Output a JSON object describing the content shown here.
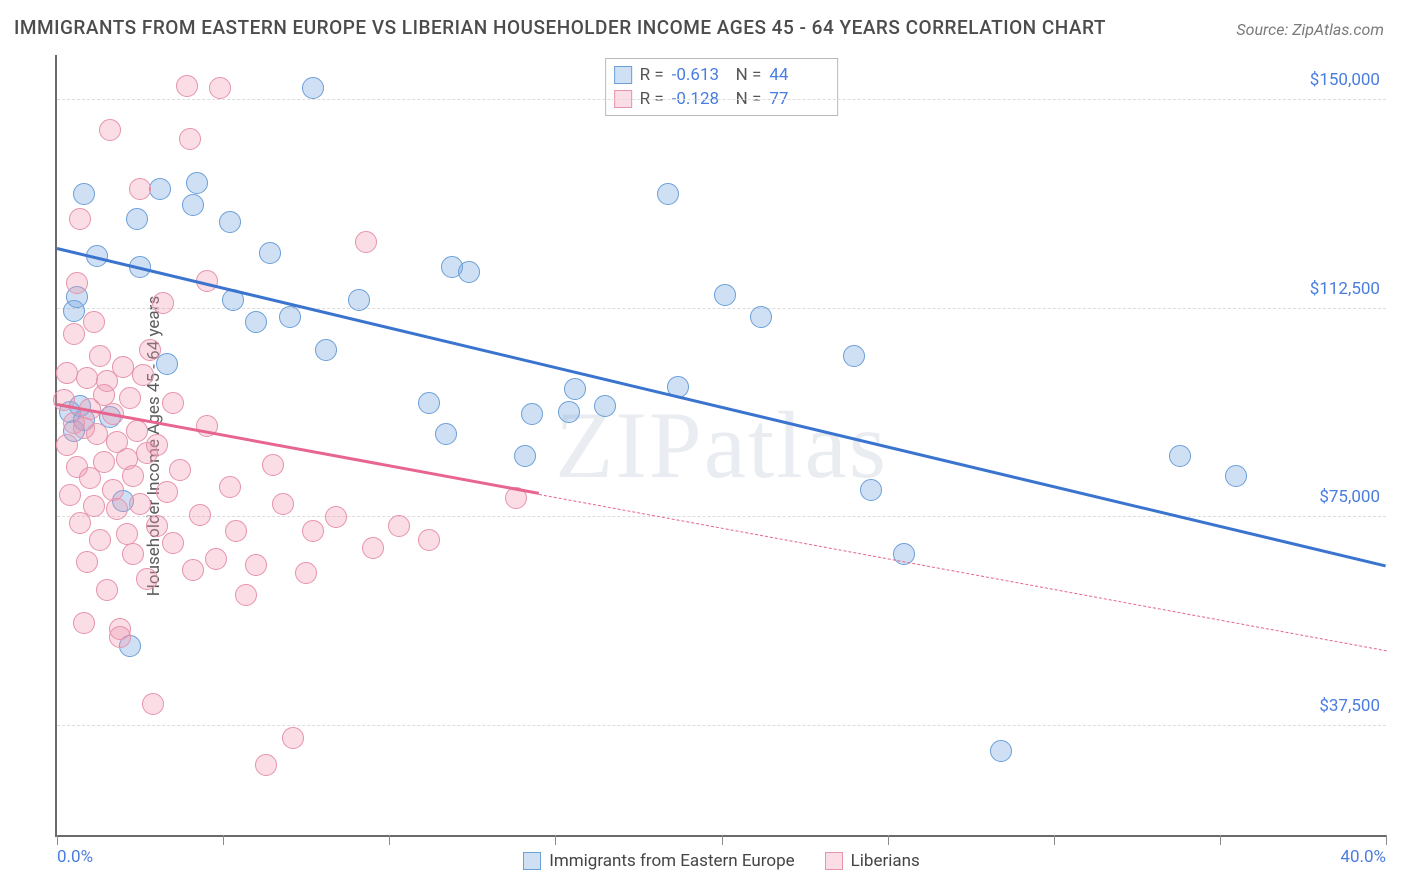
{
  "title": "IMMIGRANTS FROM EASTERN EUROPE VS LIBERIAN HOUSEHOLDER INCOME AGES 45 - 64 YEARS CORRELATION CHART",
  "source_label": "Source:",
  "source_value": "ZipAtlas.com",
  "watermark": "ZIPatlas",
  "chart": {
    "type": "scatter",
    "ylabel": "Householder Income Ages 45 - 64 years",
    "xlim": [
      0,
      40
    ],
    "ylim": [
      18000,
      158000
    ],
    "xmin_label": "0.0%",
    "xmax_label": "40.0%",
    "yticks": [
      {
        "v": 37500,
        "label": "$37,500"
      },
      {
        "v": 75000,
        "label": "$75,000"
      },
      {
        "v": 112500,
        "label": "$112,500"
      },
      {
        "v": 150000,
        "label": "$150,000"
      }
    ],
    "xtick_positions": [
      0,
      5,
      10,
      15,
      20,
      25,
      30,
      35,
      40
    ],
    "background_color": "#ffffff",
    "grid_color": "#dcdcdc",
    "axis_color": "#6a6a6a",
    "tick_label_color": "#4a7de0",
    "point_radius": 11,
    "series": [
      {
        "key": "eastern_europe",
        "label": "Immigrants from Eastern Europe",
        "fill": "rgba(120,166,224,0.35)",
        "stroke": "#6a9fd8",
        "trend_color": "#3a74cf",
        "trend_width": 3,
        "R": "-0.613",
        "N": "44",
        "trend": {
          "x1": 0,
          "y1": 123000,
          "x2": 40,
          "y2": 66000,
          "dash_after_x": null
        },
        "points": [
          [
            0.4,
            94000
          ],
          [
            0.5,
            112000
          ],
          [
            0.5,
            90500
          ],
          [
            0.6,
            114500
          ],
          [
            0.7,
            95000
          ],
          [
            0.8,
            133000
          ],
          [
            0.8,
            92500
          ],
          [
            1.2,
            122000
          ],
          [
            1.6,
            93000
          ],
          [
            2.0,
            78000
          ],
          [
            2.2,
            52000
          ],
          [
            2.4,
            128500
          ],
          [
            2.5,
            120000
          ],
          [
            3.1,
            134000
          ],
          [
            3.3,
            102500
          ],
          [
            4.1,
            131000
          ],
          [
            4.2,
            135000
          ],
          [
            5.2,
            128000
          ],
          [
            5.3,
            114000
          ],
          [
            6.0,
            110000
          ],
          [
            6.4,
            122500
          ],
          [
            7.0,
            111000
          ],
          [
            7.7,
            152000
          ],
          [
            8.1,
            105000
          ],
          [
            9.1,
            114000
          ],
          [
            11.2,
            95500
          ],
          [
            11.7,
            90000
          ],
          [
            11.9,
            120000
          ],
          [
            12.4,
            119000
          ],
          [
            14.1,
            86000
          ],
          [
            14.3,
            93500
          ],
          [
            15.4,
            94000
          ],
          [
            15.6,
            98000
          ],
          [
            16.5,
            95000
          ],
          [
            18.4,
            133000
          ],
          [
            18.7,
            98500
          ],
          [
            20.1,
            115000
          ],
          [
            21.2,
            111000
          ],
          [
            24.0,
            104000
          ],
          [
            24.5,
            80000
          ],
          [
            25.5,
            68500
          ],
          [
            28.4,
            33000
          ],
          [
            33.8,
            86000
          ],
          [
            35.5,
            82500
          ]
        ]
      },
      {
        "key": "liberians",
        "label": "Liberians",
        "fill": "rgba(240,150,175,0.32)",
        "stroke": "#e693ac",
        "trend_color": "#e7658e",
        "trend_width": 3,
        "R": "-0.128",
        "N": "77",
        "trend": {
          "x1": 0,
          "y1": 95000,
          "x2": 40,
          "y2": 51000,
          "dash_after_x": 14.5
        },
        "points": [
          [
            0.2,
            96000
          ],
          [
            0.3,
            101000
          ],
          [
            0.3,
            88000
          ],
          [
            0.4,
            79000
          ],
          [
            0.5,
            108000
          ],
          [
            0.5,
            92000
          ],
          [
            0.6,
            84000
          ],
          [
            0.6,
            117000
          ],
          [
            0.7,
            74000
          ],
          [
            0.7,
            128500
          ],
          [
            0.8,
            56000
          ],
          [
            0.8,
            91000
          ],
          [
            0.9,
            100000
          ],
          [
            0.9,
            67000
          ],
          [
            1.0,
            94500
          ],
          [
            1.0,
            82000
          ],
          [
            1.1,
            110000
          ],
          [
            1.1,
            77000
          ],
          [
            1.2,
            90000
          ],
          [
            1.3,
            104000
          ],
          [
            1.3,
            71000
          ],
          [
            1.4,
            85000
          ],
          [
            1.4,
            97000
          ],
          [
            1.5,
            62000
          ],
          [
            1.5,
            99500
          ],
          [
            1.6,
            144500
          ],
          [
            1.7,
            80000
          ],
          [
            1.7,
            93500
          ],
          [
            1.8,
            88500
          ],
          [
            1.8,
            76500
          ],
          [
            1.9,
            55000
          ],
          [
            1.9,
            53500
          ],
          [
            2.0,
            102000
          ],
          [
            2.1,
            85500
          ],
          [
            2.1,
            72000
          ],
          [
            2.2,
            96500
          ],
          [
            2.3,
            68500
          ],
          [
            2.3,
            82500
          ],
          [
            2.4,
            90500
          ],
          [
            2.5,
            77500
          ],
          [
            2.5,
            134000
          ],
          [
            2.6,
            100500
          ],
          [
            2.7,
            86500
          ],
          [
            2.7,
            64000
          ],
          [
            2.8,
            105000
          ],
          [
            2.9,
            41500
          ],
          [
            3.0,
            73500
          ],
          [
            3.0,
            88000
          ],
          [
            3.2,
            113500
          ],
          [
            3.3,
            79500
          ],
          [
            3.5,
            70500
          ],
          [
            3.5,
            95500
          ],
          [
            3.7,
            83500
          ],
          [
            3.9,
            152500
          ],
          [
            4.0,
            143000
          ],
          [
            4.1,
            65500
          ],
          [
            4.3,
            75500
          ],
          [
            4.5,
            117500
          ],
          [
            4.5,
            91500
          ],
          [
            4.8,
            67500
          ],
          [
            4.9,
            152000
          ],
          [
            5.2,
            80500
          ],
          [
            5.4,
            72500
          ],
          [
            5.7,
            61000
          ],
          [
            6.0,
            66500
          ],
          [
            6.3,
            30500
          ],
          [
            6.5,
            84500
          ],
          [
            6.8,
            77500
          ],
          [
            7.1,
            35500
          ],
          [
            7.5,
            65000
          ],
          [
            7.7,
            72500
          ],
          [
            8.4,
            75000
          ],
          [
            9.3,
            124500
          ],
          [
            9.5,
            69500
          ],
          [
            10.3,
            73500
          ],
          [
            11.2,
            71000
          ],
          [
            13.8,
            78500
          ]
        ]
      }
    ],
    "legend_top": {
      "R_label": "R =",
      "N_label": "N ="
    },
    "legend_bottom": true
  }
}
